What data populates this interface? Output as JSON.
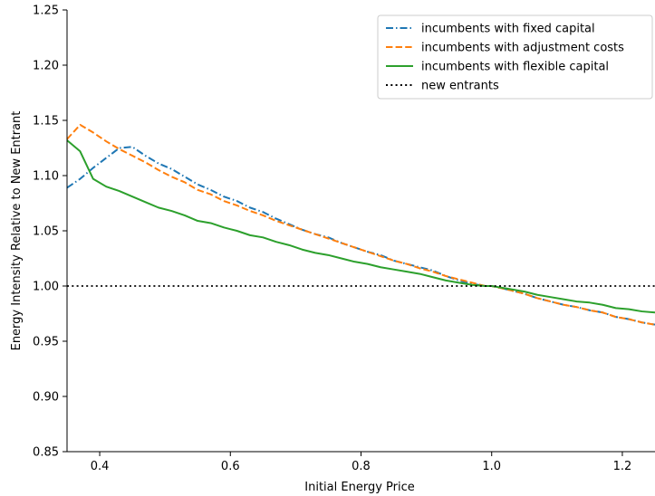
{
  "chart_data": {
    "type": "line",
    "title": "",
    "xlabel": "Initial Energy Price",
    "ylabel": "Energy Intensity Relative to New Entrant",
    "xlim": [
      0.35,
      1.25
    ],
    "ylim": [
      0.85,
      1.25
    ],
    "xticks": [
      0.4,
      0.6,
      0.8,
      1.0,
      1.2
    ],
    "xtick_labels": [
      "0.4",
      "0.6",
      "0.8",
      "1.0",
      "1.2"
    ],
    "yticks": [
      0.85,
      0.9,
      0.95,
      1.0,
      1.05,
      1.1,
      1.15,
      1.2,
      1.25
    ],
    "ytick_labels": [
      "0.85",
      "0.90",
      "0.95",
      "1.00",
      "1.05",
      "1.10",
      "1.15",
      "1.20",
      "1.25"
    ],
    "grid": false,
    "legend_position": "top-right",
    "series": [
      {
        "name": "incumbents with fixed capital",
        "color": "#1f77b4",
        "style": "dashdot",
        "x": [
          0.35,
          0.37,
          0.39,
          0.41,
          0.43,
          0.45,
          0.47,
          0.49,
          0.51,
          0.53,
          0.55,
          0.57,
          0.59,
          0.61,
          0.63,
          0.65,
          0.67,
          0.69,
          0.71,
          0.73,
          0.75,
          0.77,
          0.79,
          0.81,
          0.83,
          0.85,
          0.87,
          0.89,
          0.91,
          0.93,
          0.95,
          0.97,
          0.99,
          1.0,
          1.03,
          1.05,
          1.07,
          1.09,
          1.11,
          1.13,
          1.15,
          1.17,
          1.19,
          1.21,
          1.23,
          1.25
        ],
        "values": [
          1.089,
          1.097,
          1.107,
          1.116,
          1.125,
          1.126,
          1.118,
          1.111,
          1.106,
          1.099,
          1.092,
          1.087,
          1.081,
          1.077,
          1.071,
          1.067,
          1.061,
          1.056,
          1.051,
          1.047,
          1.044,
          1.039,
          1.035,
          1.031,
          1.028,
          1.023,
          1.02,
          1.017,
          1.014,
          1.009,
          1.005,
          1.002,
          1.0,
          1.0,
          0.996,
          0.993,
          0.989,
          0.986,
          0.983,
          0.981,
          0.978,
          0.976,
          0.972,
          0.97,
          0.967,
          0.965
        ]
      },
      {
        "name": "incumbents with adjustment costs",
        "color": "#ff7f0e",
        "style": "dashed",
        "x": [
          0.35,
          0.37,
          0.39,
          0.41,
          0.43,
          0.45,
          0.47,
          0.49,
          0.51,
          0.53,
          0.55,
          0.57,
          0.59,
          0.61,
          0.63,
          0.65,
          0.67,
          0.69,
          0.71,
          0.73,
          0.75,
          0.77,
          0.79,
          0.81,
          0.83,
          0.85,
          0.87,
          0.89,
          0.91,
          0.93,
          0.95,
          0.97,
          0.99,
          1.0,
          1.03,
          1.05,
          1.07,
          1.09,
          1.11,
          1.13,
          1.15,
          1.17,
          1.19,
          1.21,
          1.23,
          1.25
        ],
        "values": [
          1.133,
          1.146,
          1.139,
          1.131,
          1.124,
          1.118,
          1.112,
          1.105,
          1.099,
          1.094,
          1.087,
          1.083,
          1.077,
          1.073,
          1.068,
          1.064,
          1.059,
          1.055,
          1.051,
          1.047,
          1.043,
          1.039,
          1.035,
          1.031,
          1.027,
          1.023,
          1.02,
          1.016,
          1.013,
          1.009,
          1.006,
          1.003,
          1.0,
          1.0,
          0.996,
          0.993,
          0.989,
          0.986,
          0.983,
          0.981,
          0.978,
          0.976,
          0.972,
          0.97,
          0.967,
          0.965
        ]
      },
      {
        "name": "incumbents with flexible capital",
        "color": "#2ca02c",
        "style": "solid",
        "x": [
          0.35,
          0.37,
          0.39,
          0.41,
          0.43,
          0.45,
          0.47,
          0.49,
          0.51,
          0.53,
          0.55,
          0.57,
          0.59,
          0.61,
          0.63,
          0.65,
          0.67,
          0.69,
          0.71,
          0.73,
          0.75,
          0.77,
          0.79,
          0.81,
          0.83,
          0.85,
          0.87,
          0.89,
          0.91,
          0.93,
          0.95,
          0.97,
          0.99,
          1.0,
          1.03,
          1.05,
          1.07,
          1.09,
          1.11,
          1.13,
          1.15,
          1.17,
          1.19,
          1.21,
          1.23,
          1.25
        ],
        "values": [
          1.132,
          1.122,
          1.097,
          1.09,
          1.086,
          1.081,
          1.076,
          1.071,
          1.068,
          1.064,
          1.059,
          1.057,
          1.053,
          1.05,
          1.046,
          1.044,
          1.04,
          1.037,
          1.033,
          1.03,
          1.028,
          1.025,
          1.022,
          1.02,
          1.017,
          1.015,
          1.013,
          1.011,
          1.008,
          1.005,
          1.003,
          1.001,
          1.0,
          1.0,
          0.997,
          0.995,
          0.992,
          0.99,
          0.988,
          0.986,
          0.985,
          0.983,
          0.98,
          0.979,
          0.977,
          0.976
        ]
      },
      {
        "name": "new entrants",
        "color": "#000000",
        "style": "dotted",
        "x": [
          0.35,
          1.25
        ],
        "values": [
          1.0,
          1.0
        ]
      }
    ]
  }
}
